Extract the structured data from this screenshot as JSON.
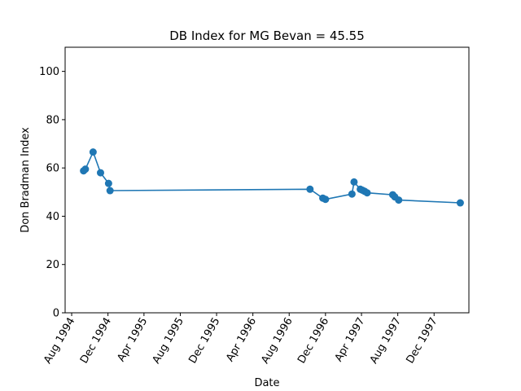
{
  "chart_data": {
    "type": "line",
    "title": "DB Index for MG Bevan = 45.55",
    "xlabel": "Date",
    "ylabel": "Don Bradman Index",
    "xlim": [
      "1994-07-10",
      "1998-03-28"
    ],
    "ylim": [
      0,
      110
    ],
    "x_ticks": [
      "1994-08-01",
      "1994-12-01",
      "1995-04-01",
      "1995-08-01",
      "1995-12-01",
      "1996-04-01",
      "1996-08-01",
      "1996-12-01",
      "1997-04-01",
      "1997-08-01",
      "1997-12-01"
    ],
    "x_tick_labels": [
      "Aug 1994",
      "Dec 1994",
      "Apr 1995",
      "Aug 1995",
      "Dec 1995",
      "Apr 1996",
      "Aug 1996",
      "Dec 1996",
      "Apr 1997",
      "Aug 1997",
      "Dec 1997"
    ],
    "y_ticks": [
      0,
      20,
      40,
      60,
      80,
      100
    ],
    "y_tick_labels": [
      "0",
      "20",
      "40",
      "60",
      "80",
      "100"
    ],
    "color": "#1f77b4",
    "grid": false,
    "series": [
      {
        "x": [
          "1994-09-10",
          "1994-09-16",
          "1994-10-12",
          "1994-11-06",
          "1994-12-03",
          "1994-12-08",
          "1996-10-10",
          "1996-11-22",
          "1996-12-01",
          "1997-02-28",
          "1997-03-07",
          "1997-03-28",
          "1997-04-04",
          "1997-04-12",
          "1997-04-20",
          "1997-07-15",
          "1997-07-22",
          "1997-08-04",
          "1998-02-27"
        ],
        "y": [
          58.8,
          59.5,
          66.6,
          58.0,
          53.6,
          50.6,
          51.2,
          47.5,
          47.0,
          49.2,
          54.2,
          51.2,
          50.8,
          50.3,
          49.7,
          48.9,
          48.0,
          46.7,
          45.55
        ]
      }
    ]
  }
}
